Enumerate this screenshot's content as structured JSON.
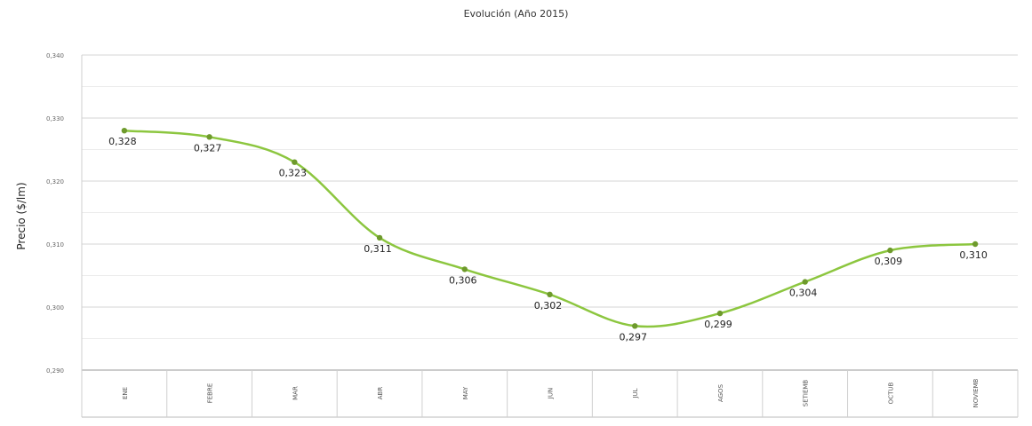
{
  "chart_data": {
    "type": "line",
    "title": "Evolución (Año 2015)",
    "ylabel": "Precio ($/lm)",
    "xlabel": "",
    "categories": [
      "ENE",
      "FEBRE",
      "MAR",
      "ABR",
      "MAY",
      "JUN",
      "JUL",
      "AGOS",
      "SETIEMB",
      "OCTUB",
      "NOVIEMB"
    ],
    "series": [
      {
        "values": [
          0.328,
          0.327,
          0.323,
          0.311,
          0.306,
          0.302,
          0.297,
          0.299,
          0.304,
          0.309,
          0.31
        ]
      }
    ],
    "data_labels": [
      "0,328",
      "0,327",
      "0,323",
      "0,311",
      "0,306",
      "0,302",
      "0,297",
      "0,299",
      "0,304",
      "0,309",
      "0,310"
    ],
    "ylim": [
      0.29,
      0.34
    ],
    "yticks": [
      0.29,
      0.3,
      0.31,
      0.32,
      0.33,
      0.34
    ],
    "ytick_labels": [
      "0,290",
      "0,300",
      "0,310",
      "0,320",
      "0,330",
      "0,340"
    ],
    "grid": true,
    "legend": "none",
    "line_color": "#8cc63f",
    "marker_color": "#6e9a2c"
  }
}
